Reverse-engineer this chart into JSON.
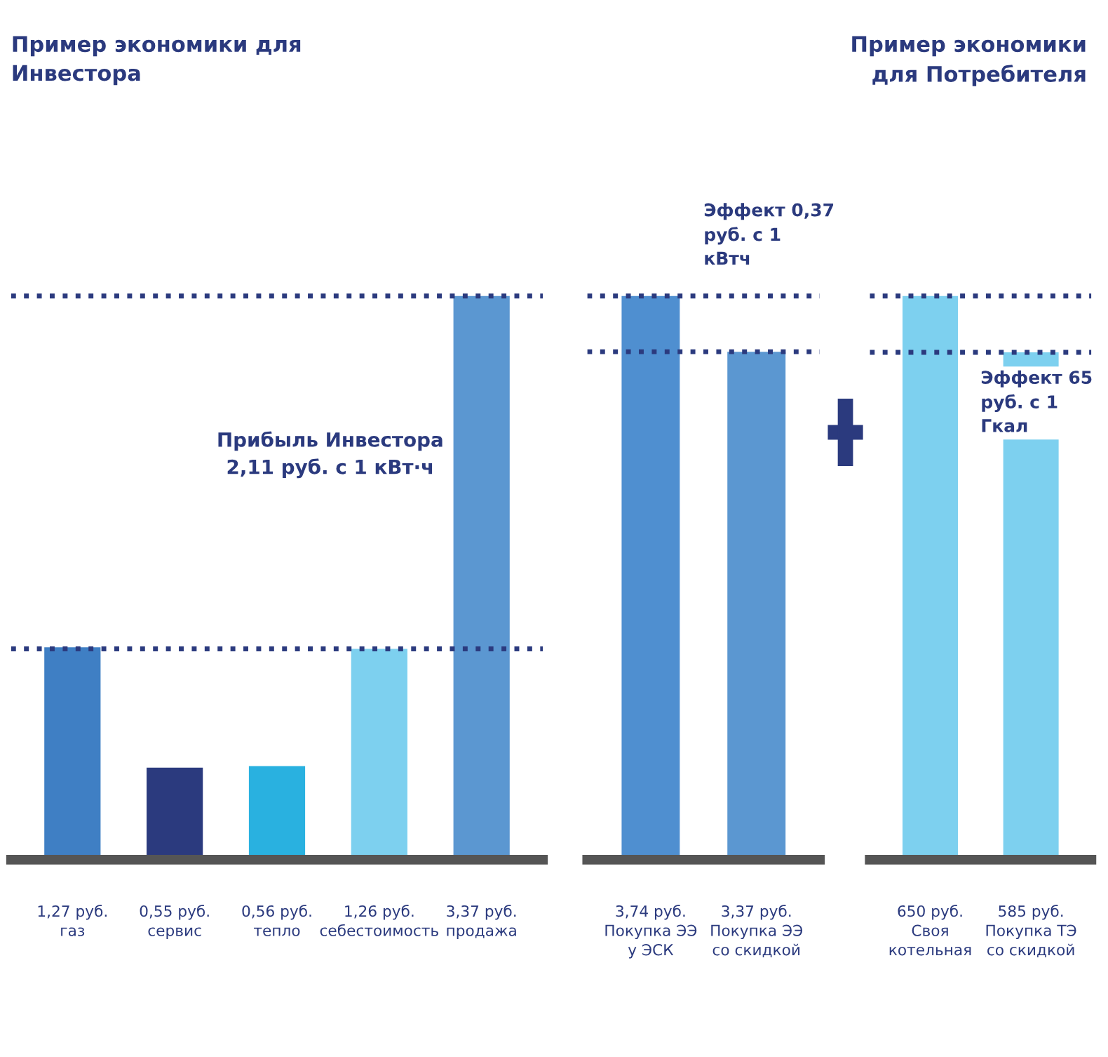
{
  "chart_data": [
    {
      "type": "bar",
      "categories": [
        "газ",
        "сервис",
        "тепло",
        "себестоимость",
        "продажа"
      ],
      "values": [
        1.27,
        0.55,
        0.56,
        1.26,
        3.37
      ],
      "colors": [
        "#3f7fc4",
        "#2b3a7e",
        "#29b1e0",
        "#7dd0ef",
        "#5b97d1"
      ],
      "value_labels": [
        "1,27 руб.",
        "0,55 руб.",
        "0,56 руб.",
        "1,26 руб.",
        "3,37 руб."
      ],
      "annotations": [
        "Пример экономики для Инвестора",
        "Прибыль Инвестора 2,11 руб. с 1 кВт·ч"
      ],
      "ref_lines": [
        {
          "axis": "y",
          "value": 1.26,
          "line_style": "dotted",
          "color": "#2b3a7e"
        },
        {
          "axis": "y",
          "value": 3.37,
          "line_style": "dotted",
          "color": "#2b3a7e"
        }
      ]
    },
    {
      "type": "bar",
      "categories": [
        "Покупка ЭЭ у ЭСК",
        "Покупка ЭЭ со скидкой"
      ],
      "values": [
        3.74,
        3.37
      ],
      "colors": [
        "#4f8fd0",
        "#5b97d1"
      ],
      "value_labels": [
        "3,74 руб.",
        "3,37 руб."
      ],
      "annotations": [
        "Эффект 0,37 руб. с 1 кВтч"
      ],
      "ref_lines": [
        {
          "axis": "y",
          "value": 3.74,
          "line_style": "dotted",
          "color": "#2b3a7e"
        },
        {
          "axis": "y",
          "value": 3.37,
          "line_style": "dotted",
          "color": "#2b3a7e"
        }
      ]
    },
    {
      "type": "bar",
      "categories": [
        "Своя котельная",
        "Покупка ТЭ со скидкой"
      ],
      "values": [
        650,
        585
      ],
      "colors": [
        "#7dd0ef",
        "#7dd0ef"
      ],
      "value_labels": [
        "650 руб.",
        "585 руб."
      ],
      "annotations": [
        "Пример экономики для Потребителя",
        "Эффект 65 руб. с 1 Гкал"
      ],
      "ref_lines": [
        {
          "axis": "y",
          "value": 650,
          "line_style": "dotted",
          "color": "#2b3a7e"
        },
        {
          "axis": "y",
          "value": 585,
          "line_style": "dotted",
          "color": "#2b3a7e"
        }
      ]
    }
  ]
}
